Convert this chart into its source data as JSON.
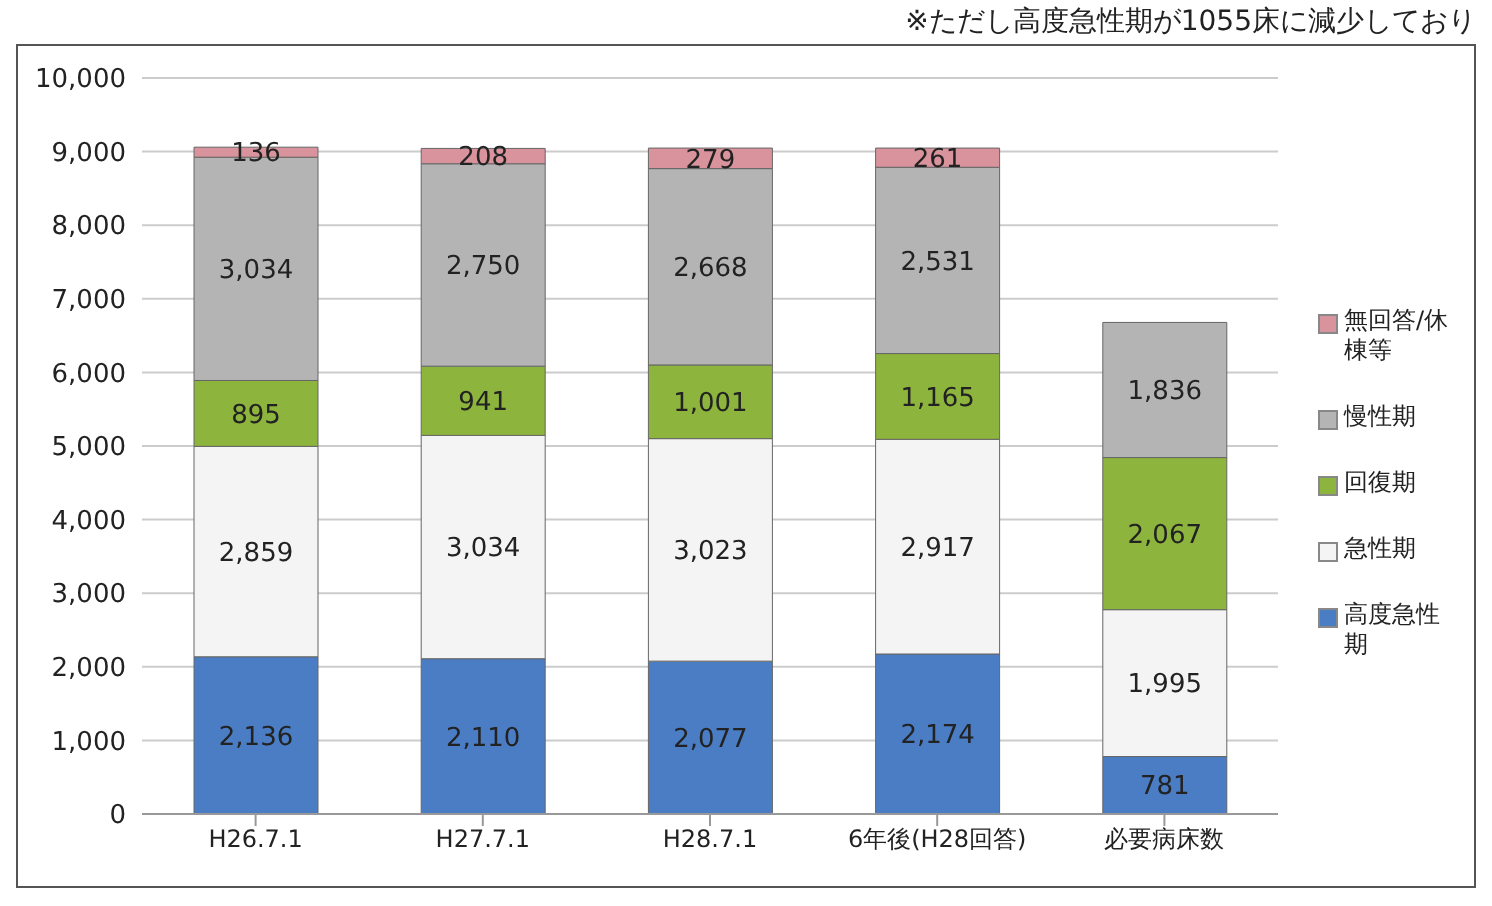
{
  "chart_data": {
    "type": "bar",
    "stacked": true,
    "annotations": [
      "※ただし高度急性期が1055床に減少しており"
    ],
    "categories": [
      "H26.7.1",
      "H27.7.1",
      "H28.7.1",
      "6年後(H28回答)",
      "必要病床数"
    ],
    "series": [
      {
        "name": "高度急性期",
        "color": "#4a7dc4",
        "values": [
          2136,
          2110,
          2077,
          2174,
          781
        ],
        "value_labels": [
          "2,136",
          "2,110",
          "2,077",
          "2,174",
          "781"
        ]
      },
      {
        "name": "急性期",
        "color": "#f4f4f4",
        "values": [
          2859,
          3034,
          3023,
          2917,
          1995
        ],
        "value_labels": [
          "2,859",
          "3,034",
          "3,023",
          "2,917",
          "1,995"
        ]
      },
      {
        "name": "回復期",
        "color": "#8db43c",
        "values": [
          895,
          941,
          1001,
          1165,
          2067
        ],
        "value_labels": [
          "895",
          "941",
          "1,001",
          "1,165",
          "2,067"
        ]
      },
      {
        "name": "慢性期",
        "color": "#b4b4b4",
        "values": [
          3034,
          2750,
          2668,
          2531,
          1836
        ],
        "value_labels": [
          "3,034",
          "2,750",
          "2,668",
          "2,531",
          "1,836"
        ]
      },
      {
        "name": "無回答/休棟等",
        "color": "#d9939c",
        "values": [
          136,
          208,
          279,
          261,
          null
        ],
        "value_labels": [
          "136",
          "208",
          "279",
          "261",
          null
        ]
      }
    ],
    "ylim": [
      0,
      10000
    ],
    "yticks": [
      0,
      {
        "value": 1000,
        "label": "1,000"
      },
      {
        "value": 2000,
        "label": "2,000"
      },
      {
        "value": 3000,
        "label": "3,000"
      },
      {
        "value": 4000,
        "label": "4,000"
      },
      {
        "value": 5000,
        "label": "5,000"
      },
      {
        "value": 6000,
        "label": "6,000"
      },
      {
        "value": 7000,
        "label": "7,000"
      },
      {
        "value": 8000,
        "label": "8,000"
      },
      {
        "value": 9000,
        "label": "9,000"
      },
      {
        "value": 10000,
        "label": "10,000"
      }
    ],
    "grid": "y",
    "legend": "right"
  }
}
